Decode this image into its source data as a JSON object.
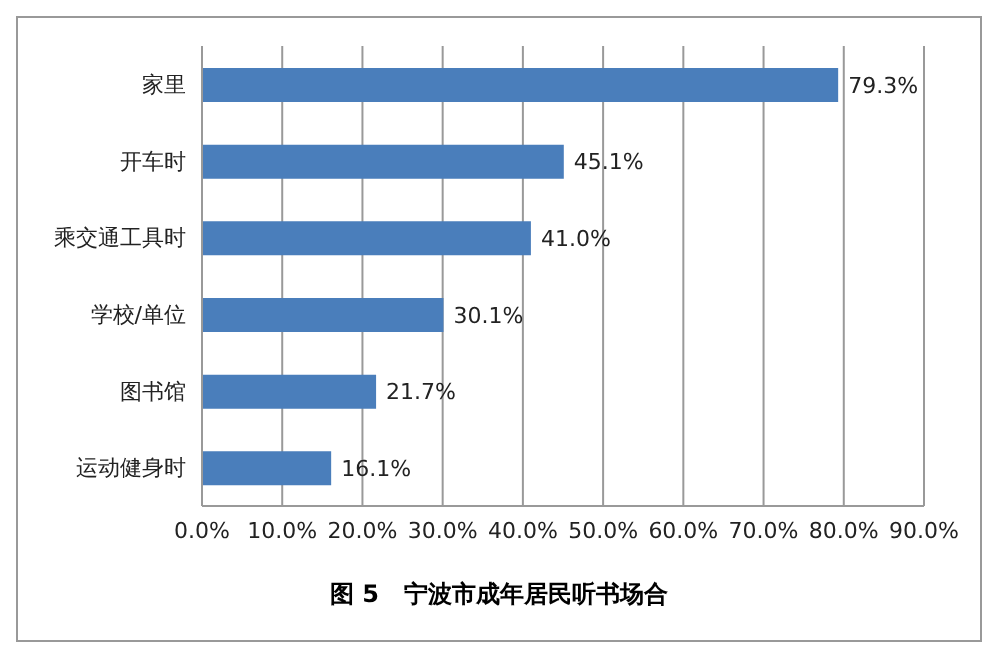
{
  "chart_data": {
    "type": "bar",
    "orientation": "horizontal",
    "title": "图 5   宁波市成年居民听书场合",
    "categories": [
      "家里",
      "开车时",
      "乘交通工具时",
      "学校/单位",
      "图书馆",
      "运动健身时"
    ],
    "values": [
      79.3,
      45.1,
      41.0,
      30.1,
      21.7,
      16.1
    ],
    "value_labels": [
      "79.3%",
      "45.1%",
      "41.0%",
      "30.1%",
      "21.7%",
      "16.1%"
    ],
    "color": "#4a7ebb",
    "xlim": [
      0,
      90
    ],
    "xticks": [
      {
        "value": 0,
        "label": "0.0%"
      },
      {
        "value": 10,
        "label": "10.0%"
      },
      {
        "value": 20,
        "label": "20.0%"
      },
      {
        "value": 30,
        "label": "30.0%"
      },
      {
        "value": 40,
        "label": "40.0%"
      },
      {
        "value": 50,
        "label": "50.0%"
      },
      {
        "value": 60,
        "label": "60.0%"
      },
      {
        "value": 70,
        "label": "70.0%"
      },
      {
        "value": 80,
        "label": "80.0%"
      },
      {
        "value": 90,
        "label": "90.0%"
      }
    ],
    "grid": "x"
  }
}
